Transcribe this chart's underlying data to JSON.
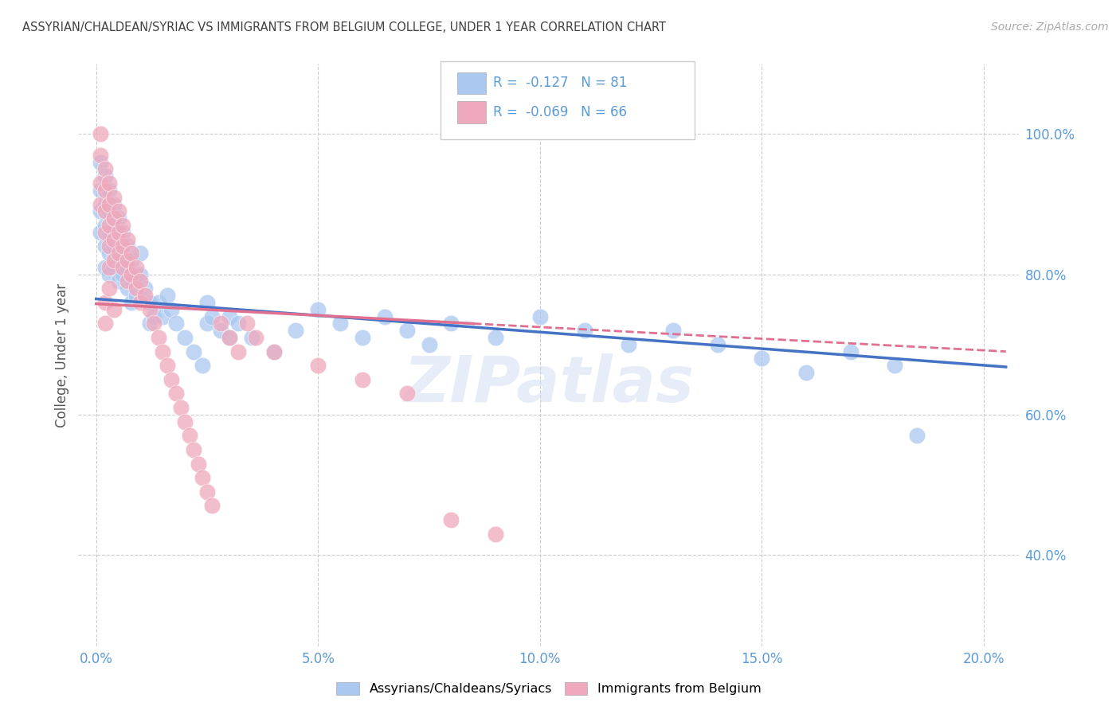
{
  "title": "ASSYRIAN/CHALDEAN/SYRIAC VS IMMIGRANTS FROM BELGIUM COLLEGE, UNDER 1 YEAR CORRELATION CHART",
  "source": "Source: ZipAtlas.com",
  "ylabel": "College, Under 1 year",
  "x_tick_labels": [
    "0.0%",
    "5.0%",
    "10.0%",
    "15.0%",
    "20.0%"
  ],
  "x_tick_vals": [
    0.0,
    0.05,
    0.1,
    0.15,
    0.2
  ],
  "y_tick_labels": [
    "40.0%",
    "60.0%",
    "80.0%",
    "100.0%"
  ],
  "y_tick_vals": [
    0.4,
    0.6,
    0.8,
    1.0
  ],
  "xlim": [
    -0.004,
    0.208
  ],
  "ylim": [
    0.27,
    1.1
  ],
  "legend_label1": "Assyrians/Chaldeans/Syriacs",
  "legend_label2": "Immigrants from Belgium",
  "R1": -0.127,
  "N1": 81,
  "R2": -0.069,
  "N2": 66,
  "color1": "#aac8f0",
  "color2": "#f0a8bc",
  "line_color1": "#4472c4",
  "line_color2": "#e07090",
  "background_color": "#ffffff",
  "grid_color": "#cccccc",
  "title_color": "#404040",
  "axis_label_color": "#5b9bd5",
  "watermark": "ZIPatlas",
  "blue_scatter": [
    [
      0.001,
      0.96
    ],
    [
      0.001,
      0.92
    ],
    [
      0.001,
      0.89
    ],
    [
      0.001,
      0.86
    ],
    [
      0.002,
      0.94
    ],
    [
      0.002,
      0.9
    ],
    [
      0.002,
      0.87
    ],
    [
      0.002,
      0.84
    ],
    [
      0.002,
      0.81
    ],
    [
      0.003,
      0.92
    ],
    [
      0.003,
      0.89
    ],
    [
      0.003,
      0.86
    ],
    [
      0.003,
      0.83
    ],
    [
      0.003,
      0.8
    ],
    [
      0.004,
      0.9
    ],
    [
      0.004,
      0.87
    ],
    [
      0.004,
      0.84
    ],
    [
      0.004,
      0.81
    ],
    [
      0.005,
      0.88
    ],
    [
      0.005,
      0.85
    ],
    [
      0.005,
      0.82
    ],
    [
      0.005,
      0.79
    ],
    [
      0.006,
      0.86
    ],
    [
      0.006,
      0.83
    ],
    [
      0.006,
      0.8
    ],
    [
      0.007,
      0.84
    ],
    [
      0.007,
      0.81
    ],
    [
      0.007,
      0.78
    ],
    [
      0.008,
      0.82
    ],
    [
      0.008,
      0.79
    ],
    [
      0.008,
      0.76
    ],
    [
      0.009,
      0.8
    ],
    [
      0.009,
      0.77
    ],
    [
      0.01,
      0.83
    ],
    [
      0.01,
      0.8
    ],
    [
      0.011,
      0.78
    ],
    [
      0.012,
      0.76
    ],
    [
      0.012,
      0.73
    ],
    [
      0.013,
      0.74
    ],
    [
      0.014,
      0.76
    ],
    [
      0.015,
      0.74
    ],
    [
      0.016,
      0.77
    ],
    [
      0.017,
      0.75
    ],
    [
      0.018,
      0.73
    ],
    [
      0.02,
      0.71
    ],
    [
      0.022,
      0.69
    ],
    [
      0.024,
      0.67
    ],
    [
      0.025,
      0.76
    ],
    [
      0.025,
      0.73
    ],
    [
      0.026,
      0.74
    ],
    [
      0.028,
      0.72
    ],
    [
      0.03,
      0.74
    ],
    [
      0.03,
      0.71
    ],
    [
      0.032,
      0.73
    ],
    [
      0.035,
      0.71
    ],
    [
      0.04,
      0.69
    ],
    [
      0.045,
      0.72
    ],
    [
      0.05,
      0.75
    ],
    [
      0.055,
      0.73
    ],
    [
      0.06,
      0.71
    ],
    [
      0.065,
      0.74
    ],
    [
      0.07,
      0.72
    ],
    [
      0.075,
      0.7
    ],
    [
      0.08,
      0.73
    ],
    [
      0.09,
      0.71
    ],
    [
      0.1,
      0.74
    ],
    [
      0.11,
      0.72
    ],
    [
      0.12,
      0.7
    ],
    [
      0.13,
      0.72
    ],
    [
      0.14,
      0.7
    ],
    [
      0.15,
      0.68
    ],
    [
      0.16,
      0.66
    ],
    [
      0.17,
      0.69
    ],
    [
      0.18,
      0.67
    ],
    [
      0.185,
      0.57
    ]
  ],
  "pink_scatter": [
    [
      0.001,
      1.0
    ],
    [
      0.001,
      0.97
    ],
    [
      0.001,
      0.93
    ],
    [
      0.001,
      0.9
    ],
    [
      0.002,
      0.95
    ],
    [
      0.002,
      0.92
    ],
    [
      0.002,
      0.89
    ],
    [
      0.002,
      0.86
    ],
    [
      0.003,
      0.93
    ],
    [
      0.003,
      0.9
    ],
    [
      0.003,
      0.87
    ],
    [
      0.003,
      0.84
    ],
    [
      0.003,
      0.81
    ],
    [
      0.004,
      0.91
    ],
    [
      0.004,
      0.88
    ],
    [
      0.004,
      0.85
    ],
    [
      0.004,
      0.82
    ],
    [
      0.005,
      0.89
    ],
    [
      0.005,
      0.86
    ],
    [
      0.005,
      0.83
    ],
    [
      0.006,
      0.87
    ],
    [
      0.006,
      0.84
    ],
    [
      0.006,
      0.81
    ],
    [
      0.007,
      0.85
    ],
    [
      0.007,
      0.82
    ],
    [
      0.007,
      0.79
    ],
    [
      0.008,
      0.83
    ],
    [
      0.008,
      0.8
    ],
    [
      0.009,
      0.81
    ],
    [
      0.009,
      0.78
    ],
    [
      0.01,
      0.79
    ],
    [
      0.01,
      0.76
    ],
    [
      0.011,
      0.77
    ],
    [
      0.012,
      0.75
    ],
    [
      0.013,
      0.73
    ],
    [
      0.014,
      0.71
    ],
    [
      0.015,
      0.69
    ],
    [
      0.016,
      0.67
    ],
    [
      0.017,
      0.65
    ],
    [
      0.018,
      0.63
    ],
    [
      0.019,
      0.61
    ],
    [
      0.02,
      0.59
    ],
    [
      0.021,
      0.57
    ],
    [
      0.022,
      0.55
    ],
    [
      0.023,
      0.53
    ],
    [
      0.024,
      0.51
    ],
    [
      0.025,
      0.49
    ],
    [
      0.026,
      0.47
    ],
    [
      0.028,
      0.73
    ],
    [
      0.03,
      0.71
    ],
    [
      0.032,
      0.69
    ],
    [
      0.034,
      0.73
    ],
    [
      0.036,
      0.71
    ],
    [
      0.04,
      0.69
    ],
    [
      0.05,
      0.67
    ],
    [
      0.06,
      0.65
    ],
    [
      0.07,
      0.63
    ],
    [
      0.08,
      0.45
    ],
    [
      0.09,
      0.43
    ],
    [
      0.002,
      0.76
    ],
    [
      0.002,
      0.73
    ],
    [
      0.003,
      0.78
    ],
    [
      0.004,
      0.75
    ]
  ],
  "trendline1_x": [
    0.0,
    0.205
  ],
  "trendline1_y": [
    0.765,
    0.668
  ],
  "trendline2_x": [
    0.0,
    0.205
  ],
  "trendline2_y": [
    0.758,
    0.69
  ],
  "trendline2_solid_end": 0.085
}
